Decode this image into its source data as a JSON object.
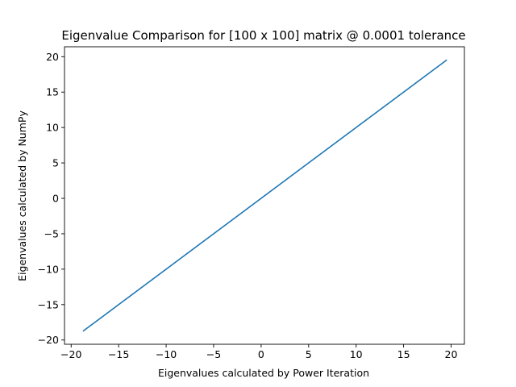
{
  "chart_data": {
    "type": "line",
    "title": "Eigenvalue Comparison for [100 x 100] matrix @ 0.0001 tolerance",
    "xlabel": "Eigenvalues calculated by Power Iteration",
    "ylabel": "Eigenvalues calculated by NumPy",
    "xlim": [
      -20.7,
      21.4
    ],
    "ylim": [
      -20.6,
      21.4
    ],
    "xticks": [
      -20,
      -15,
      -10,
      -5,
      0,
      5,
      10,
      15,
      20
    ],
    "yticks": [
      -20,
      -15,
      -10,
      -5,
      0,
      5,
      10,
      15,
      20
    ],
    "xtick_labels": [
      "−20",
      "−15",
      "−10",
      "−5",
      "0",
      "5",
      "10",
      "15",
      "20"
    ],
    "ytick_labels": [
      "−20",
      "−15",
      "−10",
      "−5",
      "0",
      "5",
      "10",
      "15",
      "20"
    ],
    "grid": false,
    "series": [
      {
        "color": "#1f77b4",
        "x": [
          -18.7,
          19.5
        ],
        "y": [
          -18.7,
          19.5
        ]
      }
    ]
  }
}
